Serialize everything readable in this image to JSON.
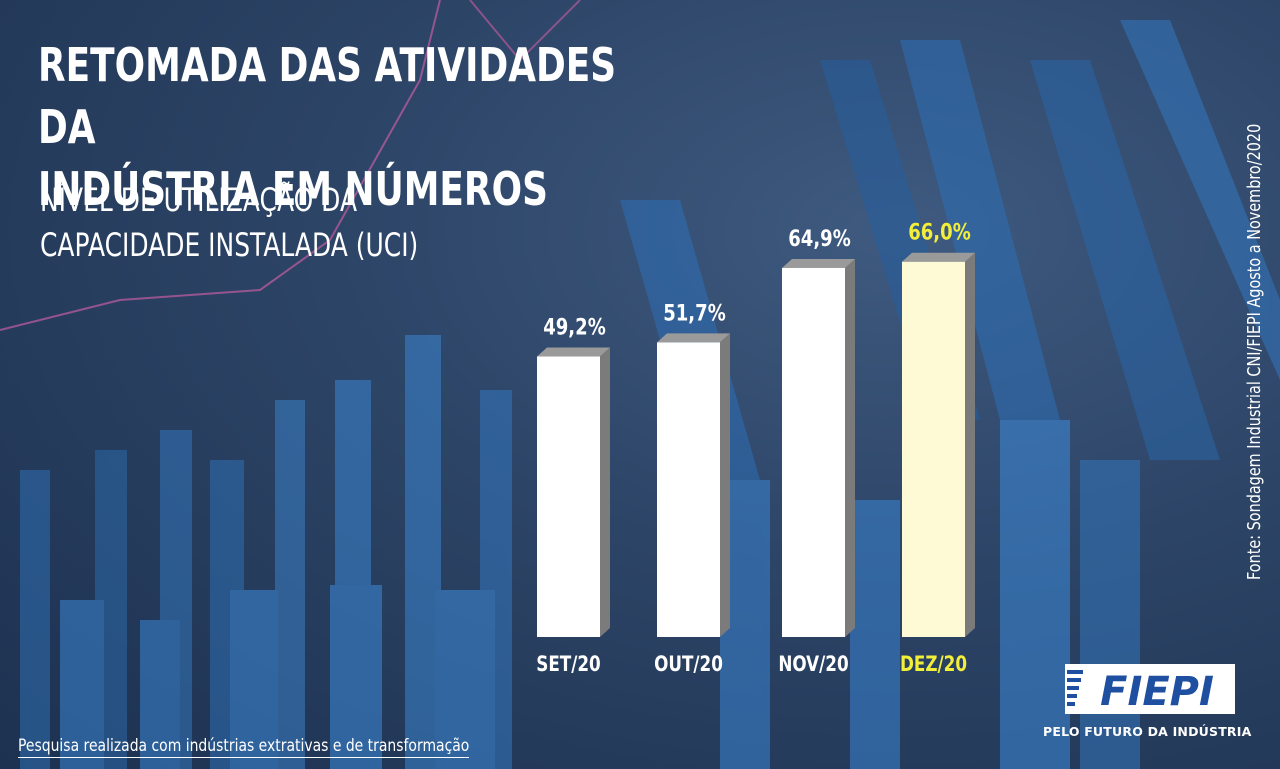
{
  "title_line1": "RETOMADA DAS ATIVIDADES DA",
  "title_line2": "INDÚSTRIA EM NÚMEROS",
  "subtitle_line1": "NÍVEL DE UTILIZAÇÃO DA",
  "subtitle_line2": "CAPACIDADE INSTALADA (UCI)",
  "source": "Fonte: Sondagem Industrial CNI/FIEPI Agosto a Novembro/2020",
  "footnote": "Pesquisa realizada com indústrias extrativas e de transformação",
  "brand": {
    "logo_text": "FIEPI",
    "tagline": "PELO FUTURO DA INDÚSTRIA"
  },
  "colors": {
    "bar": "#ffffff",
    "bar_highlight": "#fefad6",
    "bar_side": "#7b7b7b",
    "bar_top": "#9a9a9a",
    "label": "#ffffff",
    "label_highlight": "#f2ee3a"
  },
  "chart_data": {
    "type": "bar",
    "categories": [
      "SET/20",
      "OUT/20",
      "NOV/20",
      "DEZ/20"
    ],
    "values": [
      49.2,
      51.7,
      64.9,
      66.0
    ],
    "value_labels": [
      "49,2%",
      "51,7%",
      "64,9%",
      "66,0%"
    ],
    "highlight_index": 3,
    "unit": "%"
  }
}
